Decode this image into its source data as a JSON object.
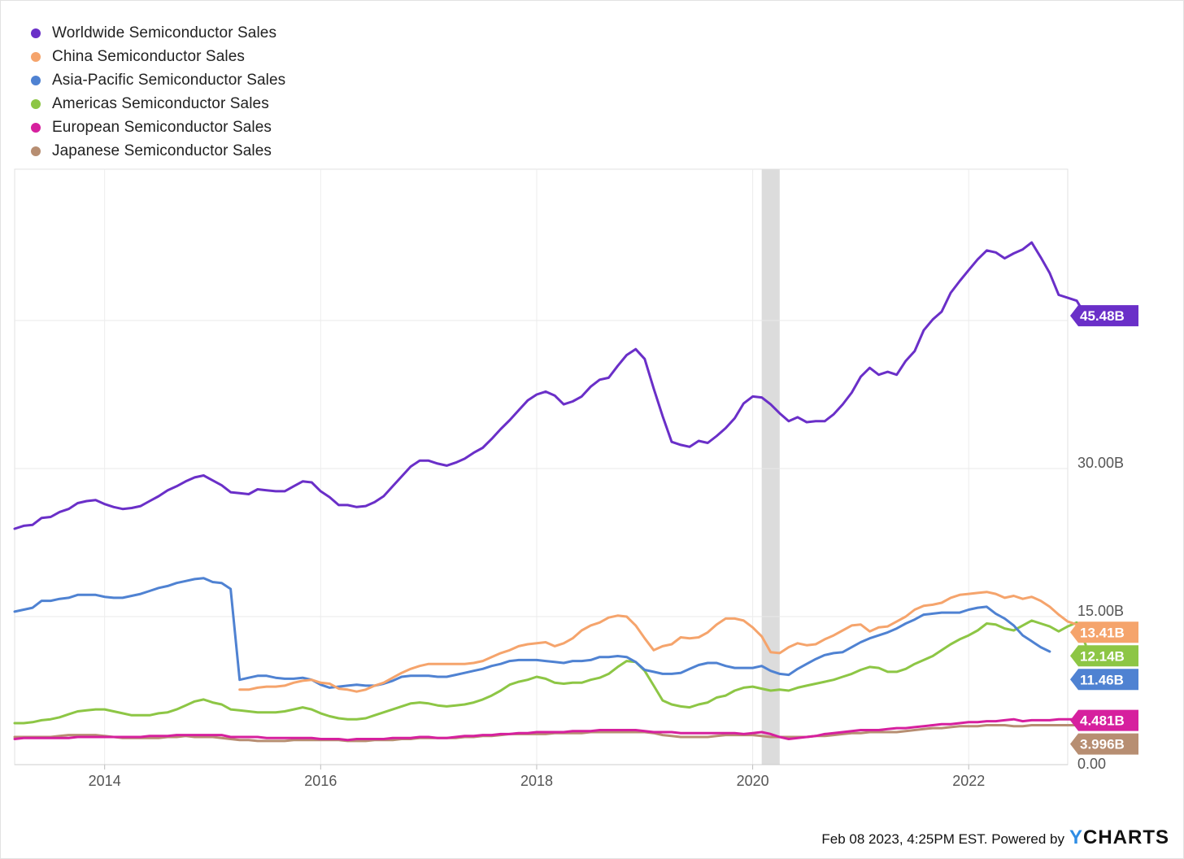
{
  "chart_data": {
    "type": "line",
    "title": "",
    "xlabel": "",
    "ylabel": "",
    "x_ticks": [
      "2014",
      "2016",
      "2018",
      "2020",
      "2022"
    ],
    "y_ticks": [
      "0.00",
      "15.00B",
      "30.00B"
    ],
    "ylim": [
      0,
      60
    ],
    "x_range": [
      "2013-03",
      "2022-12"
    ],
    "grid": true,
    "legend_position": "top-left",
    "recession_band": [
      "2020-02",
      "2020-04"
    ],
    "series": [
      {
        "name": "Worldwide Semiconductor Sales",
        "color": "#6a2fc8",
        "end_label": "45.48B",
        "start": "2013-03",
        "values": [
          23.9,
          24.2,
          24.3,
          25.0,
          25.1,
          25.6,
          25.9,
          26.5,
          26.7,
          26.8,
          26.4,
          26.1,
          25.9,
          26.0,
          26.2,
          26.7,
          27.2,
          27.8,
          28.2,
          28.7,
          29.1,
          29.3,
          28.8,
          28.3,
          27.6,
          27.5,
          27.4,
          27.9,
          27.8,
          27.7,
          27.7,
          28.2,
          28.7,
          28.6,
          27.7,
          27.1,
          26.3,
          26.3,
          26.1,
          26.2,
          26.6,
          27.2,
          28.2,
          29.2,
          30.2,
          30.8,
          30.8,
          30.5,
          30.3,
          30.6,
          31.0,
          31.6,
          32.1,
          33.0,
          34.0,
          34.9,
          35.9,
          36.9,
          37.5,
          37.8,
          37.4,
          36.5,
          36.8,
          37.3,
          38.3,
          39.0,
          39.2,
          40.4,
          41.5,
          42.1,
          41.1,
          38.1,
          35.3,
          32.7,
          32.4,
          32.2,
          32.8,
          32.6,
          33.3,
          34.1,
          35.1,
          36.6,
          37.3,
          37.2,
          36.5,
          35.6,
          34.8,
          35.2,
          34.7,
          34.8,
          34.8,
          35.5,
          36.5,
          37.7,
          39.3,
          40.2,
          39.5,
          39.8,
          39.5,
          40.9,
          41.9,
          44.0,
          45.1,
          45.9,
          47.8,
          49.0,
          50.1,
          51.2,
          52.1,
          51.9,
          51.3,
          51.8,
          52.2,
          52.9,
          51.4,
          49.8,
          47.6,
          47.3,
          47.0,
          45.48
        ]
      },
      {
        "name": "China Semiconductor Sales",
        "color": "#f5a46c",
        "end_label": "13.41B",
        "start": "2015-04",
        "values": [
          7.6,
          7.6,
          7.8,
          7.9,
          7.9,
          8.0,
          8.3,
          8.5,
          8.6,
          8.3,
          8.2,
          7.7,
          7.6,
          7.4,
          7.6,
          8.0,
          8.3,
          8.8,
          9.3,
          9.7,
          10.0,
          10.2,
          10.2,
          10.2,
          10.2,
          10.2,
          10.3,
          10.5,
          10.9,
          11.3,
          11.6,
          12.0,
          12.2,
          12.3,
          12.4,
          12.0,
          12.3,
          12.8,
          13.6,
          14.1,
          14.4,
          14.9,
          15.1,
          15.0,
          14.1,
          12.8,
          11.6,
          12.0,
          12.2,
          12.9,
          12.8,
          12.9,
          13.4,
          14.2,
          14.8,
          14.8,
          14.6,
          13.9,
          13.0,
          11.4,
          11.3,
          11.9,
          12.3,
          12.1,
          12.2,
          12.7,
          13.1,
          13.6,
          14.1,
          14.2,
          13.5,
          13.9,
          14.0,
          14.5,
          15.0,
          15.7,
          16.1,
          16.2,
          16.4,
          16.9,
          17.2,
          17.3,
          17.4,
          17.5,
          17.3,
          16.9,
          17.1,
          16.8,
          17.0,
          16.6,
          16.0,
          15.2,
          14.5,
          14.2,
          13.41
        ]
      },
      {
        "name": "Asia-Pacific Semiconductor Sales",
        "color": "#4f82d2",
        "end_label": "11.46B",
        "start": "2013-03",
        "values": [
          15.5,
          15.7,
          15.9,
          16.6,
          16.6,
          16.8,
          16.9,
          17.2,
          17.2,
          17.2,
          17.0,
          16.9,
          16.9,
          17.1,
          17.3,
          17.6,
          17.9,
          18.1,
          18.4,
          18.6,
          18.8,
          18.9,
          18.5,
          18.4,
          17.8,
          8.6,
          8.8,
          9.0,
          9.0,
          8.8,
          8.7,
          8.7,
          8.8,
          8.6,
          8.1,
          7.8,
          7.9,
          8.0,
          8.1,
          8.0,
          8.0,
          8.2,
          8.5,
          8.9,
          9.0,
          9.0,
          9.0,
          8.9,
          8.9,
          9.1,
          9.3,
          9.5,
          9.7,
          10.0,
          10.2,
          10.5,
          10.6,
          10.6,
          10.6,
          10.5,
          10.4,
          10.3,
          10.5,
          10.5,
          10.6,
          10.9,
          10.9,
          11.0,
          10.9,
          10.4,
          9.6,
          9.4,
          9.2,
          9.2,
          9.3,
          9.7,
          10.1,
          10.3,
          10.3,
          10.0,
          9.8,
          9.8,
          9.8,
          10.0,
          9.5,
          9.2,
          9.1,
          9.7,
          10.2,
          10.7,
          11.1,
          11.3,
          11.4,
          11.9,
          12.4,
          12.8,
          13.1,
          13.4,
          13.8,
          14.3,
          14.7,
          15.2,
          15.3,
          15.4,
          15.4,
          15.4,
          15.7,
          15.9,
          16.0,
          15.3,
          14.8,
          14.1,
          13.1,
          12.5,
          11.9,
          11.46
        ]
      },
      {
        "name": "Americas Semiconductor Sales",
        "color": "#8dc645",
        "end_label": "12.14B",
        "start": "2013-03",
        "values": [
          4.2,
          4.2,
          4.3,
          4.5,
          4.6,
          4.8,
          5.1,
          5.4,
          5.5,
          5.6,
          5.6,
          5.4,
          5.2,
          5.0,
          5.0,
          5.0,
          5.2,
          5.3,
          5.6,
          6.0,
          6.4,
          6.6,
          6.3,
          6.1,
          5.6,
          5.5,
          5.4,
          5.3,
          5.3,
          5.3,
          5.4,
          5.6,
          5.8,
          5.6,
          5.2,
          4.9,
          4.7,
          4.6,
          4.6,
          4.7,
          5.0,
          5.3,
          5.6,
          5.9,
          6.2,
          6.3,
          6.2,
          6.0,
          5.9,
          6.0,
          6.1,
          6.3,
          6.6,
          7.0,
          7.5,
          8.1,
          8.4,
          8.6,
          8.9,
          8.7,
          8.3,
          8.2,
          8.3,
          8.3,
          8.6,
          8.8,
          9.2,
          9.9,
          10.5,
          10.4,
          9.5,
          8.0,
          6.5,
          6.1,
          5.9,
          5.8,
          6.1,
          6.3,
          6.8,
          7.0,
          7.5,
          7.8,
          7.9,
          7.7,
          7.5,
          7.6,
          7.5,
          7.8,
          8.0,
          8.2,
          8.4,
          8.6,
          8.9,
          9.2,
          9.6,
          9.9,
          9.8,
          9.4,
          9.4,
          9.7,
          10.2,
          10.6,
          11.0,
          11.6,
          12.2,
          12.7,
          13.1,
          13.6,
          14.3,
          14.2,
          13.8,
          13.6,
          14.1,
          14.6,
          14.3,
          14.0,
          13.5,
          14.0,
          14.4,
          12.14
        ]
      },
      {
        "name": "European Semiconductor Sales",
        "color": "#d6209e",
        "end_label": "4.481B",
        "start": "2013-03",
        "values": [
          2.6,
          2.7,
          2.7,
          2.7,
          2.7,
          2.7,
          2.7,
          2.8,
          2.8,
          2.8,
          2.8,
          2.8,
          2.8,
          2.8,
          2.8,
          2.9,
          2.9,
          2.9,
          3.0,
          3.0,
          3.0,
          3.0,
          3.0,
          3.0,
          2.8,
          2.8,
          2.8,
          2.8,
          2.7,
          2.7,
          2.7,
          2.7,
          2.7,
          2.7,
          2.6,
          2.6,
          2.6,
          2.5,
          2.6,
          2.6,
          2.6,
          2.6,
          2.7,
          2.7,
          2.7,
          2.8,
          2.8,
          2.7,
          2.7,
          2.8,
          2.9,
          2.9,
          3.0,
          3.0,
          3.1,
          3.1,
          3.2,
          3.2,
          3.3,
          3.3,
          3.3,
          3.3,
          3.4,
          3.4,
          3.4,
          3.5,
          3.5,
          3.5,
          3.5,
          3.5,
          3.4,
          3.3,
          3.3,
          3.3,
          3.2,
          3.2,
          3.2,
          3.2,
          3.2,
          3.2,
          3.2,
          3.1,
          3.2,
          3.3,
          3.1,
          2.8,
          2.6,
          2.7,
          2.8,
          2.9,
          3.1,
          3.2,
          3.3,
          3.4,
          3.5,
          3.5,
          3.5,
          3.6,
          3.7,
          3.7,
          3.8,
          3.9,
          4.0,
          4.1,
          4.1,
          4.2,
          4.3,
          4.3,
          4.4,
          4.4,
          4.5,
          4.6,
          4.4,
          4.5,
          4.5,
          4.5,
          4.6,
          4.6,
          4.6,
          4.481
        ]
      },
      {
        "name": "Japanese Semiconductor Sales",
        "color": "#b78e72",
        "end_label": "3.996B",
        "start": "2013-03",
        "values": [
          2.8,
          2.8,
          2.8,
          2.8,
          2.8,
          2.9,
          3.0,
          3.0,
          3.0,
          3.0,
          2.9,
          2.8,
          2.7,
          2.7,
          2.7,
          2.7,
          2.7,
          2.8,
          2.8,
          2.9,
          2.8,
          2.8,
          2.8,
          2.7,
          2.6,
          2.5,
          2.5,
          2.4,
          2.4,
          2.4,
          2.4,
          2.5,
          2.5,
          2.5,
          2.5,
          2.5,
          2.5,
          2.4,
          2.4,
          2.4,
          2.5,
          2.5,
          2.5,
          2.6,
          2.6,
          2.7,
          2.7,
          2.7,
          2.7,
          2.7,
          2.8,
          2.8,
          2.9,
          2.9,
          3.0,
          3.1,
          3.1,
          3.1,
          3.1,
          3.1,
          3.2,
          3.2,
          3.2,
          3.2,
          3.3,
          3.3,
          3.3,
          3.3,
          3.3,
          3.3,
          3.3,
          3.2,
          3.0,
          2.9,
          2.8,
          2.8,
          2.8,
          2.8,
          2.9,
          3.0,
          3.0,
          3.0,
          3.0,
          2.9,
          2.8,
          2.8,
          2.8,
          2.8,
          2.8,
          2.9,
          2.9,
          3.0,
          3.1,
          3.2,
          3.2,
          3.3,
          3.3,
          3.3,
          3.3,
          3.4,
          3.5,
          3.6,
          3.7,
          3.7,
          3.8,
          3.9,
          3.9,
          3.9,
          4.0,
          4.0,
          4.0,
          3.9,
          3.9,
          4.0,
          4.0,
          4.0,
          4.0,
          4.0,
          4.0,
          3.996
        ]
      }
    ]
  },
  "footer": {
    "timestamp": "Feb 08 2023, 4:25PM EST. Powered by",
    "brand_y": "Y",
    "brand_rest": "CHARTS"
  }
}
